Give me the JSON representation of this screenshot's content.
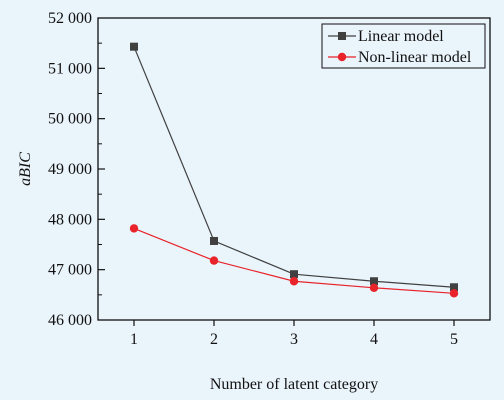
{
  "chart_data": {
    "type": "line",
    "xlabel": "Number of latent category",
    "ylabel": "aBIC",
    "x": [
      1,
      2,
      3,
      4,
      5
    ],
    "xticks": [
      "1",
      "2",
      "3",
      "4",
      "5"
    ],
    "xlim": [
      0.55,
      5.45
    ],
    "ylim": [
      46000,
      52000
    ],
    "yticks": [
      46000,
      47000,
      48000,
      49000,
      50000,
      51000,
      52000
    ],
    "ytick_labels": [
      "46 000",
      "47 000",
      "48 000",
      "49 000",
      "50 000",
      "51 000",
      "52 000"
    ],
    "legend_position": "top-right",
    "grid": false,
    "series": [
      {
        "name": "Linear model",
        "values": [
          51430,
          47570,
          46910,
          46770,
          46650
        ],
        "color": "#404040",
        "marker": "square"
      },
      {
        "name": "Non-linear model",
        "values": [
          47820,
          47180,
          46770,
          46640,
          46530
        ],
        "color": "#e8232a",
        "marker": "circle"
      }
    ]
  }
}
